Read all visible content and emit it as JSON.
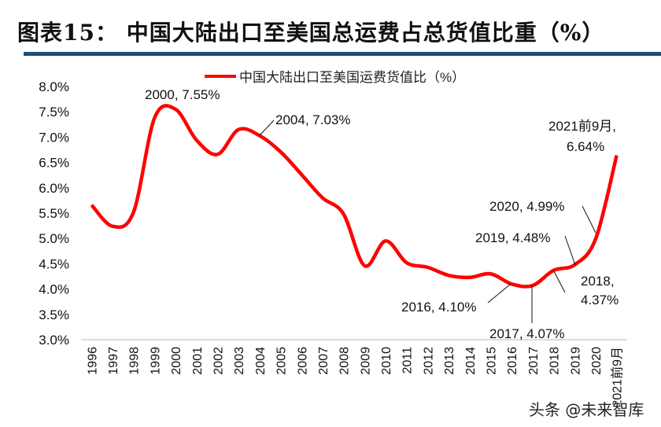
{
  "title": "图表15：  中国大陆出口至美国总运费占总货值比重（%）",
  "watermark": "头条 @未来智库",
  "chart_data": {
    "type": "line",
    "title": "",
    "xlabel": "",
    "ylabel": "",
    "ylim": [
      3.0,
      8.0
    ],
    "yticks": [
      "3.0%",
      "3.5%",
      "4.0%",
      "4.5%",
      "5.0%",
      "5.5%",
      "6.0%",
      "6.5%",
      "7.0%",
      "7.5%",
      "8.0%"
    ],
    "grid": false,
    "legend_position": "top",
    "categories": [
      "1996",
      "1997",
      "1998",
      "1999",
      "2000",
      "2001",
      "2002",
      "2003",
      "2004",
      "2005",
      "2006",
      "2007",
      "2008",
      "2009",
      "2010",
      "2011",
      "2012",
      "2013",
      "2014",
      "2015",
      "2016",
      "2017",
      "2018",
      "2019",
      "2020",
      "2021前9月"
    ],
    "series": [
      {
        "name": "中国大陆出口至美国运费货值比（%）",
        "color": "#ff0000",
        "values": [
          5.66,
          5.24,
          5.52,
          7.38,
          7.55,
          6.94,
          6.66,
          7.15,
          7.03,
          6.71,
          6.26,
          5.8,
          5.48,
          4.46,
          4.95,
          4.52,
          4.43,
          4.27,
          4.23,
          4.3,
          4.1,
          4.07,
          4.37,
          4.48,
          4.99,
          6.64
        ]
      }
    ],
    "annotations": [
      {
        "label": "2000, 7.55%"
      },
      {
        "label": "2004, 7.03%"
      },
      {
        "label": "2021前9月,",
        "label2": "6.64%"
      },
      {
        "label": "2020, 4.99%"
      },
      {
        "label": "2019, 4.48%"
      },
      {
        "label": "2018,",
        "label2": "4.37%"
      },
      {
        "label": "2016, 4.10%"
      },
      {
        "label": "2017, 4.07%"
      }
    ]
  }
}
